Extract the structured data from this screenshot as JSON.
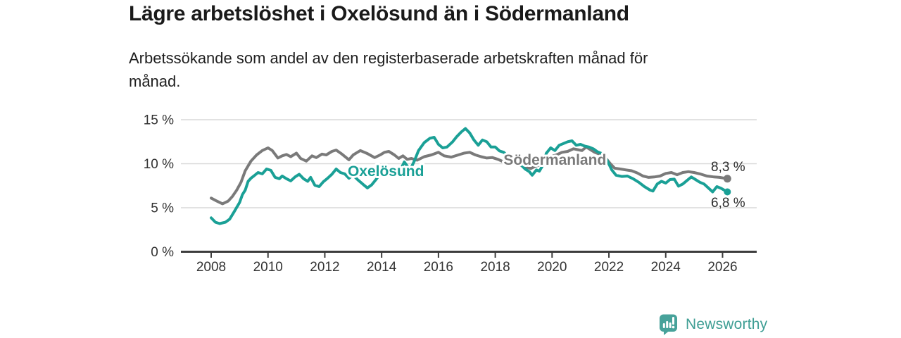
{
  "header": {
    "title": "Lägre arbetslöshet i Oxelösund än i Södermanland",
    "subtitle_line1": "Arbetssökande som andel av den registerbaserade arbetskraften månad för",
    "subtitle_line2": "månad."
  },
  "footer": {
    "brand": "Newsworthy"
  },
  "chart_data": {
    "type": "line",
    "title": "Lägre arbetslöshet i Oxelösund än i Södermanland",
    "subtitle": "Arbetssökande som andel av den registerbaserade arbetskraften månad för månad.",
    "xlim": [
      2007.1,
      2027.2
    ],
    "ylim": [
      0,
      15
    ],
    "grid": "horizontal",
    "legend_position": "inline-labels",
    "x_ticks": [
      2008,
      2010,
      2012,
      2014,
      2016,
      2018,
      2020,
      2022,
      2024,
      2026
    ],
    "y_ticks": [
      {
        "value": 0,
        "label": "0 %"
      },
      {
        "value": 5,
        "label": "5 %"
      },
      {
        "value": 10,
        "label": "10 %"
      },
      {
        "value": 15,
        "label": "15 %"
      }
    ],
    "colors": {
      "grid": "#d9d9d9",
      "axis": "#3d3d3d",
      "text": "#333333",
      "value_label": "#2b2b2b"
    },
    "series": [
      {
        "id": "sodermanland",
        "name": "Södermanland",
        "color": "#7a7a7a",
        "end_label": "8,3 %",
        "end_label_position": "above",
        "annotation": {
          "x": 2020.1,
          "y": 10.45
        },
        "points": [
          [
            2008.0,
            6.1
          ],
          [
            2008.2,
            5.75
          ],
          [
            2008.4,
            5.45
          ],
          [
            2008.6,
            5.75
          ],
          [
            2008.75,
            6.3
          ],
          [
            2008.9,
            7.0
          ],
          [
            2009.05,
            7.9
          ],
          [
            2009.2,
            9.2
          ],
          [
            2009.4,
            10.3
          ],
          [
            2009.6,
            11.0
          ],
          [
            2009.8,
            11.5
          ],
          [
            2010.0,
            11.8
          ],
          [
            2010.15,
            11.5
          ],
          [
            2010.35,
            10.65
          ],
          [
            2010.5,
            10.9
          ],
          [
            2010.65,
            11.05
          ],
          [
            2010.8,
            10.8
          ],
          [
            2011.0,
            11.2
          ],
          [
            2011.15,
            10.6
          ],
          [
            2011.35,
            10.3
          ],
          [
            2011.55,
            10.9
          ],
          [
            2011.7,
            10.7
          ],
          [
            2011.9,
            11.1
          ],
          [
            2012.05,
            11.0
          ],
          [
            2012.25,
            11.4
          ],
          [
            2012.4,
            11.55
          ],
          [
            2012.6,
            11.1
          ],
          [
            2012.85,
            10.45
          ],
          [
            2013.0,
            11.0
          ],
          [
            2013.25,
            11.5
          ],
          [
            2013.5,
            11.15
          ],
          [
            2013.75,
            10.7
          ],
          [
            2013.95,
            11.0
          ],
          [
            2014.1,
            11.3
          ],
          [
            2014.25,
            11.4
          ],
          [
            2014.45,
            11.0
          ],
          [
            2014.6,
            10.6
          ],
          [
            2014.75,
            10.9
          ],
          [
            2014.9,
            10.5
          ],
          [
            2015.05,
            10.6
          ],
          [
            2015.25,
            10.4
          ],
          [
            2015.5,
            10.8
          ],
          [
            2015.75,
            11.0
          ],
          [
            2016.0,
            11.3
          ],
          [
            2016.2,
            10.9
          ],
          [
            2016.45,
            10.75
          ],
          [
            2016.7,
            11.0
          ],
          [
            2016.9,
            11.2
          ],
          [
            2017.1,
            11.3
          ],
          [
            2017.3,
            11.0
          ],
          [
            2017.5,
            10.8
          ],
          [
            2017.7,
            10.65
          ],
          [
            2017.9,
            10.7
          ],
          [
            2018.1,
            10.5
          ],
          [
            2018.3,
            10.2
          ],
          [
            2018.5,
            10.2
          ],
          [
            2018.7,
            10.0
          ],
          [
            2018.9,
            9.8
          ],
          [
            2019.1,
            9.6
          ],
          [
            2019.25,
            9.45
          ],
          [
            2019.4,
            9.7
          ],
          [
            2019.6,
            9.9
          ],
          [
            2019.8,
            10.4
          ],
          [
            2019.95,
            10.8
          ],
          [
            2020.15,
            11.0
          ],
          [
            2020.35,
            11.3
          ],
          [
            2020.55,
            11.4
          ],
          [
            2020.75,
            11.7
          ],
          [
            2020.9,
            11.6
          ],
          [
            2021.05,
            11.5
          ],
          [
            2021.2,
            11.9
          ],
          [
            2021.35,
            11.6
          ],
          [
            2021.5,
            11.3
          ],
          [
            2021.7,
            11.05
          ],
          [
            2021.9,
            10.6
          ],
          [
            2022.05,
            10.0
          ],
          [
            2022.2,
            9.5
          ],
          [
            2022.4,
            9.4
          ],
          [
            2022.6,
            9.3
          ],
          [
            2022.8,
            9.2
          ],
          [
            2023.0,
            8.95
          ],
          [
            2023.2,
            8.6
          ],
          [
            2023.4,
            8.45
          ],
          [
            2023.6,
            8.5
          ],
          [
            2023.8,
            8.6
          ],
          [
            2024.0,
            8.9
          ],
          [
            2024.2,
            9.0
          ],
          [
            2024.4,
            8.75
          ],
          [
            2024.6,
            9.0
          ],
          [
            2024.8,
            9.1
          ],
          [
            2025.0,
            9.0
          ],
          [
            2025.2,
            8.85
          ],
          [
            2025.45,
            8.6
          ],
          [
            2025.7,
            8.5
          ],
          [
            2025.9,
            8.45
          ],
          [
            2026.17,
            8.3
          ]
        ]
      },
      {
        "id": "oxelosund",
        "name": "Oxelösund",
        "color": "#1aa096",
        "end_label": "6,8 %",
        "end_label_position": "below",
        "annotation": {
          "x": 2014.15,
          "y": 9.15
        },
        "points": [
          [
            2008.0,
            3.85
          ],
          [
            2008.15,
            3.35
          ],
          [
            2008.3,
            3.2
          ],
          [
            2008.5,
            3.35
          ],
          [
            2008.65,
            3.7
          ],
          [
            2008.8,
            4.5
          ],
          [
            2009.0,
            5.6
          ],
          [
            2009.1,
            6.5
          ],
          [
            2009.2,
            7.0
          ],
          [
            2009.3,
            8.0
          ],
          [
            2009.4,
            8.35
          ],
          [
            2009.5,
            8.6
          ],
          [
            2009.65,
            9.0
          ],
          [
            2009.8,
            8.85
          ],
          [
            2009.95,
            9.4
          ],
          [
            2010.1,
            9.25
          ],
          [
            2010.25,
            8.45
          ],
          [
            2010.4,
            8.3
          ],
          [
            2010.5,
            8.6
          ],
          [
            2010.65,
            8.3
          ],
          [
            2010.8,
            8.05
          ],
          [
            2010.95,
            8.5
          ],
          [
            2011.1,
            8.8
          ],
          [
            2011.25,
            8.3
          ],
          [
            2011.4,
            8.0
          ],
          [
            2011.5,
            8.45
          ],
          [
            2011.65,
            7.55
          ],
          [
            2011.8,
            7.4
          ],
          [
            2011.95,
            7.95
          ],
          [
            2012.1,
            8.35
          ],
          [
            2012.25,
            8.8
          ],
          [
            2012.4,
            9.4
          ],
          [
            2012.55,
            9.0
          ],
          [
            2012.7,
            8.85
          ],
          [
            2012.85,
            8.35
          ],
          [
            2013.0,
            8.7
          ],
          [
            2013.15,
            8.2
          ],
          [
            2013.35,
            7.65
          ],
          [
            2013.5,
            7.25
          ],
          [
            2013.65,
            7.6
          ],
          [
            2013.8,
            8.2
          ],
          [
            2013.95,
            8.85
          ],
          [
            2014.1,
            8.6
          ],
          [
            2014.3,
            9.0
          ],
          [
            2014.45,
            9.5
          ],
          [
            2014.6,
            8.9
          ],
          [
            2014.8,
            10.2
          ],
          [
            2015.0,
            9.3
          ],
          [
            2015.15,
            10.3
          ],
          [
            2015.3,
            11.5
          ],
          [
            2015.5,
            12.4
          ],
          [
            2015.7,
            12.9
          ],
          [
            2015.85,
            13.0
          ],
          [
            2016.0,
            12.2
          ],
          [
            2016.15,
            11.8
          ],
          [
            2016.3,
            11.9
          ],
          [
            2016.5,
            12.5
          ],
          [
            2016.65,
            13.1
          ],
          [
            2016.8,
            13.6
          ],
          [
            2016.95,
            14.0
          ],
          [
            2017.1,
            13.5
          ],
          [
            2017.25,
            12.7
          ],
          [
            2017.4,
            12.1
          ],
          [
            2017.55,
            12.7
          ],
          [
            2017.7,
            12.5
          ],
          [
            2017.85,
            11.9
          ],
          [
            2018.0,
            11.9
          ],
          [
            2018.15,
            11.45
          ],
          [
            2018.3,
            11.3
          ],
          [
            2018.45,
            10.8
          ],
          [
            2018.6,
            10.35
          ],
          [
            2018.75,
            10.1
          ],
          [
            2018.9,
            9.9
          ],
          [
            2019.05,
            9.4
          ],
          [
            2019.2,
            9.1
          ],
          [
            2019.3,
            8.7
          ],
          [
            2019.45,
            9.3
          ],
          [
            2019.55,
            9.15
          ],
          [
            2019.65,
            9.7
          ],
          [
            2019.8,
            11.2
          ],
          [
            2019.95,
            11.8
          ],
          [
            2020.1,
            11.5
          ],
          [
            2020.25,
            12.1
          ],
          [
            2020.4,
            12.3
          ],
          [
            2020.55,
            12.5
          ],
          [
            2020.7,
            12.6
          ],
          [
            2020.85,
            12.1
          ],
          [
            2021.0,
            12.2
          ],
          [
            2021.15,
            12.0
          ],
          [
            2021.3,
            11.9
          ],
          [
            2021.45,
            11.7
          ],
          [
            2021.6,
            11.35
          ],
          [
            2021.8,
            11.1
          ],
          [
            2021.95,
            10.3
          ],
          [
            2022.1,
            9.3
          ],
          [
            2022.25,
            8.7
          ],
          [
            2022.45,
            8.55
          ],
          [
            2022.65,
            8.6
          ],
          [
            2022.85,
            8.3
          ],
          [
            2023.05,
            7.9
          ],
          [
            2023.25,
            7.4
          ],
          [
            2023.45,
            7.0
          ],
          [
            2023.55,
            6.9
          ],
          [
            2023.7,
            7.7
          ],
          [
            2023.85,
            8.0
          ],
          [
            2024.0,
            7.8
          ],
          [
            2024.15,
            8.2
          ],
          [
            2024.3,
            8.25
          ],
          [
            2024.45,
            7.45
          ],
          [
            2024.6,
            7.7
          ],
          [
            2024.75,
            8.1
          ],
          [
            2024.9,
            8.5
          ],
          [
            2025.05,
            8.2
          ],
          [
            2025.2,
            7.9
          ],
          [
            2025.35,
            7.7
          ],
          [
            2025.5,
            7.25
          ],
          [
            2025.65,
            6.8
          ],
          [
            2025.8,
            7.4
          ],
          [
            2025.95,
            7.2
          ],
          [
            2026.17,
            6.8
          ]
        ]
      }
    ]
  }
}
